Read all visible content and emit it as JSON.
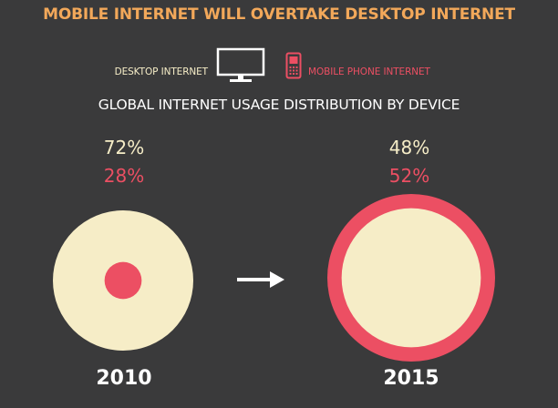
{
  "title": "MOBILE INTERNET WILL OVERTAKE DESKTOP INTERNET",
  "legend": {
    "desktop": "DESKTOP INTERNET",
    "mobile": "MOBILE PHONE INTERNET"
  },
  "subtitle": "GLOBAL INTERNET USAGE DISTRIBUTION BY DEVICE",
  "colors": {
    "background": "#3a3a3b",
    "desktop": "#f6edc7",
    "mobile": "#ec4f63",
    "title": "#f2a85a"
  },
  "icons": {
    "desktop": "desktop-monitor-icon",
    "mobile": "mobile-phone-icon",
    "transition": "right-arrow-icon"
  },
  "chart_data": {
    "type": "pie",
    "categories": [
      "2010",
      "2015"
    ],
    "series": [
      {
        "name": "DESKTOP INTERNET",
        "values": [
          72,
          48
        ],
        "labels": [
          "72%",
          "48%"
        ]
      },
      {
        "name": "MOBILE PHONE INTERNET",
        "values": [
          28,
          52
        ],
        "labels": [
          "28%",
          "52%"
        ]
      }
    ]
  }
}
